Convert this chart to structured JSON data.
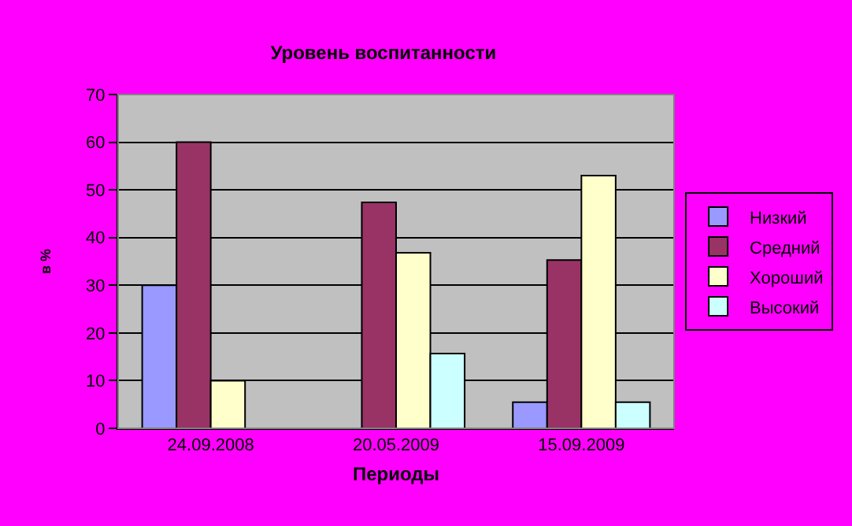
{
  "chart_data": {
    "type": "bar",
    "title": "Уровень воспитанности",
    "xlabel": "Периоды",
    "ylabel": "в %",
    "categories": [
      "24.09.2008",
      "20.05.2009",
      "15.09.2009"
    ],
    "series": [
      {
        "name": "Низкий",
        "color": "#9999ff",
        "values": [
          30,
          null,
          5.5
        ]
      },
      {
        "name": "Средний",
        "color": "#993366",
        "values": [
          60,
          47.4,
          35.3
        ]
      },
      {
        "name": "Хороший",
        "color": "#ffffcc",
        "values": [
          10,
          36.8,
          53
        ]
      },
      {
        "name": "Высокий",
        "color": "#ccffff",
        "values": [
          null,
          15.7,
          5.5
        ]
      }
    ],
    "ylim": [
      0,
      70
    ],
    "yticks": [
      0,
      10,
      20,
      30,
      40,
      50,
      60,
      70
    ],
    "grid": "y",
    "legend": "right"
  }
}
